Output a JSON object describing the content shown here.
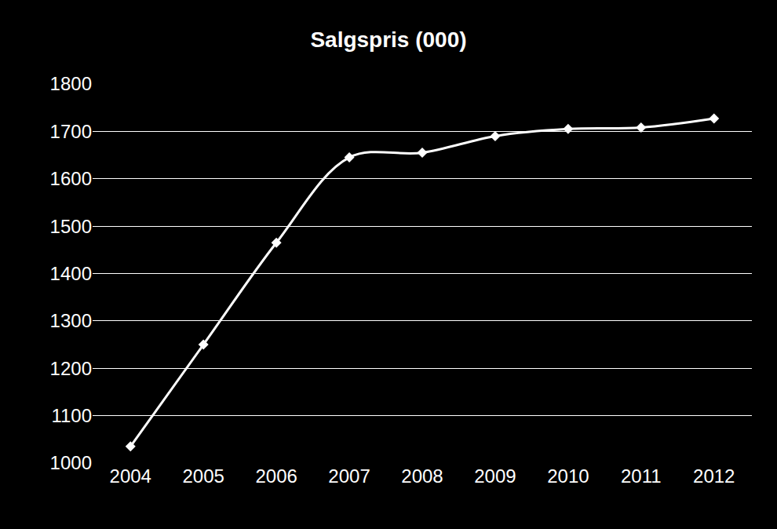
{
  "chart_data": {
    "type": "line",
    "title": "Salgspris (000)",
    "categories": [
      "2004",
      "2005",
      "2006",
      "2007",
      "2008",
      "2009",
      "2010",
      "2011",
      "2012"
    ],
    "values": [
      1035,
      1250,
      1465,
      1645,
      1655,
      1690,
      1705,
      1708,
      1727
    ],
    "color": "#ffffff",
    "marker": "diamond",
    "line_style": "smooth",
    "ylim": [
      1000,
      1800
    ],
    "yticks": [
      1000,
      1100,
      1200,
      1300,
      1400,
      1500,
      1600,
      1700,
      1800
    ],
    "grid": true
  }
}
